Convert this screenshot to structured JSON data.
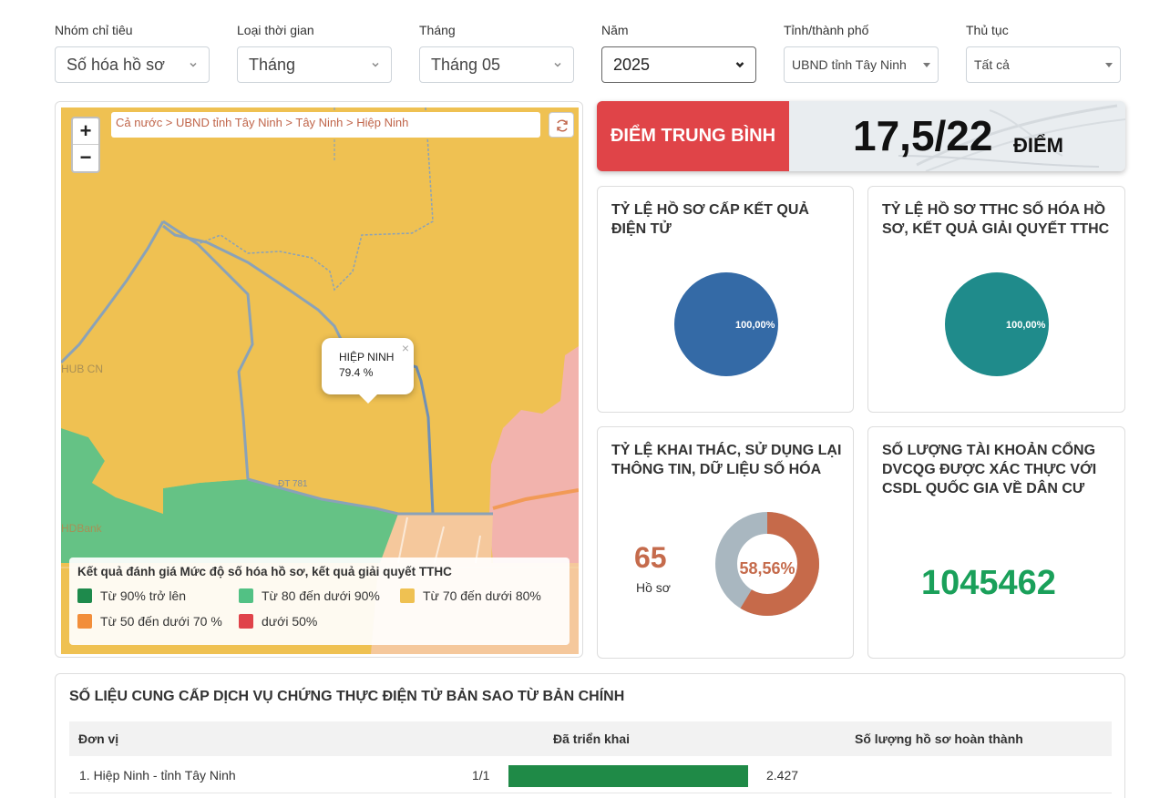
{
  "filters": [
    {
      "label": "Nhóm chỉ tiêu",
      "value": "Số hóa hồ sơ"
    },
    {
      "label": "Loại thời gian",
      "value": "Tháng"
    },
    {
      "label": "Tháng",
      "value": "Tháng 05"
    },
    {
      "label": "Năm",
      "value": "2025"
    },
    {
      "label": "Tỉnh/thành phố",
      "value": "UBND tỉnh Tây Ninh"
    },
    {
      "label": "Thủ tục",
      "value": "Tất cả"
    }
  ],
  "map": {
    "breadcrumb": "Cả nước > UBND tỉnh Tây Ninh > Tây Ninh > Hiệp Ninh",
    "zoom_in": "+",
    "zoom_out": "−",
    "popup": {
      "name": "HIỆP NINH",
      "value": "79.4 %",
      "close": "×"
    },
    "road_label": "ĐT 781",
    "legend": {
      "title": "Kết quả đánh giá Mức độ số hóa hồ sơ, kết quả giải quyết TTHC",
      "items": [
        {
          "label": "Từ 90% trở lên",
          "color": "#1e8a4c"
        },
        {
          "label": "Từ 80 đến dưới 90%",
          "color": "#52c184"
        },
        {
          "label": "Từ 70 đến dưới 80%",
          "color": "#efc152"
        },
        {
          "label": "Từ 50 đến dưới 70 %",
          "color": "#f28e3b"
        },
        {
          "label": "dưới 50%",
          "color": "#e0434a"
        }
      ]
    }
  },
  "score": {
    "label": "ĐIỂM TRUNG BÌNH",
    "value": "17,5/22",
    "unit": "ĐIỂM"
  },
  "cards": {
    "electronic_results": {
      "title": "Tỷ lệ hồ sơ cấp kết quả điện tử",
      "percent_label": "100,00%",
      "percent": 100,
      "color": "#346aa6"
    },
    "digitized": {
      "title": "Tỷ lệ hồ sơ TTHC số hóa hồ sơ, kết quả giải quyết TTHC",
      "percent_label": "100,00%",
      "percent": 100,
      "color": "#1f8b8b"
    },
    "reuse": {
      "title": "Tỷ lệ khai thác, sử dụng lại thông tin, dữ liệu số hóa",
      "count": "65",
      "count_unit": "Hồ sơ",
      "percent_label": "58,56%",
      "percent": 58.56,
      "colors": {
        "filled": "#c66a4a",
        "rest": "#a9b7c0"
      }
    },
    "accounts": {
      "title": "Số lượng tài khoản cổng DVCQG được xác thực với CSDL quốc gia về dân cư",
      "value": "1045462"
    }
  },
  "table": {
    "title": "SỐ LIỆU CUNG CẤP DỊCH VỤ CHỨNG THỰC ĐIỆN TỬ BẢN SAO TỪ BẢN CHÍNH",
    "headers": [
      "Đơn vị",
      "Đã triển khai",
      "Số lượng hồ sơ hoàn thành"
    ],
    "rows": [
      {
        "unit": "1. Hiệp Ninh - tỉnh Tây Ninh",
        "deployed": "1/1",
        "deployed_fraction": 1.0,
        "completed": "2.427"
      }
    ]
  }
}
